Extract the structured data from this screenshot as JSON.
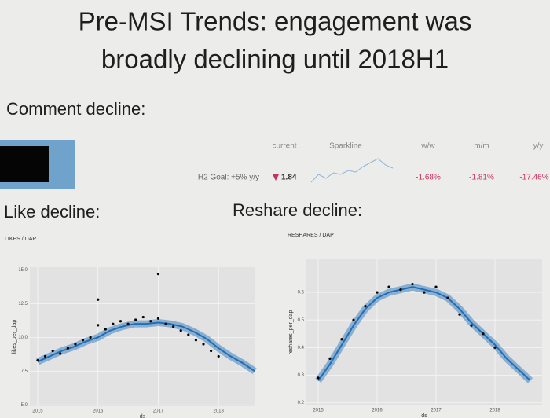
{
  "header": {
    "title_lines": [
      "Pre-MSI Trends: engagement was",
      "broadly declining until 2018H1"
    ]
  },
  "sections": {
    "comment": "Comment decline:",
    "like": "Like decline:",
    "reshare": "Reshare decline:"
  },
  "table": {
    "columns": [
      "current",
      "Sparkline",
      "w/w",
      "m/m",
      "y/y"
    ],
    "row": {
      "goal": "H2 Goal: +5% y/y",
      "current": "1.84",
      "sparkline": [
        3,
        4,
        3.5,
        4.2,
        4,
        4.5,
        4.3,
        5,
        5.5,
        6,
        5.2,
        4.8
      ],
      "ww": "-1.68%",
      "mm": "-1.81%",
      "yy": "-17.46%"
    }
  },
  "chart_data": [
    {
      "type": "scatter",
      "title": "LIKES / DAP",
      "xlabel": "ds",
      "ylabel": "likes_per_dap",
      "xlim": [
        2014.87,
        2018.61
      ],
      "ylim": [
        4.9,
        15.2
      ],
      "xticks": [
        2015,
        2016,
        2017,
        2018
      ],
      "yticks": [
        {
          "value": 5,
          "label": "5.0"
        },
        {
          "value": 7.5,
          "label": "7.5"
        },
        {
          "value": 10,
          "label": "10.0"
        },
        {
          "value": 12.5,
          "label": "12.5"
        },
        {
          "value": 15,
          "label": "15.0"
        }
      ],
      "grid": true,
      "series": [
        {
          "mark": "line",
          "color": "#1f6fb8",
          "x": [
            2015,
            2015.2,
            2015.4,
            2015.6,
            2015.8,
            2016,
            2016.2,
            2016.4,
            2016.6,
            2016.8,
            2017,
            2017.2,
            2017.4,
            2017.6,
            2017.8,
            2018,
            2018.2,
            2018.4,
            2018.6
          ],
          "values": [
            8.2,
            8.6,
            9.0,
            9.3,
            9.7,
            10.0,
            10.5,
            10.8,
            11.0,
            11.0,
            11.1,
            11.0,
            10.8,
            10.4,
            9.9,
            9.2,
            8.6,
            8.1,
            7.5
          ]
        },
        {
          "mark": "point",
          "color": "#000000",
          "x": [
            2015,
            2015.125,
            2015.25,
            2015.375,
            2015.5,
            2015.625,
            2015.75,
            2015.875,
            2016,
            2016.125,
            2016.25,
            2016.375,
            2016.5,
            2016.625,
            2016.75,
            2016.875,
            2017,
            2017.125,
            2017.25,
            2017.375,
            2017.5,
            2017.625,
            2017.75,
            2017.875,
            2018,
            2016.0,
            2017.0
          ],
          "values": [
            8.3,
            8.6,
            9.0,
            8.8,
            9.2,
            9.5,
            9.8,
            10.0,
            10.9,
            10.6,
            11.0,
            11.2,
            11.0,
            11.3,
            11.5,
            11.2,
            11.4,
            11.0,
            10.8,
            10.5,
            10.2,
            9.8,
            9.5,
            9.0,
            8.6,
            12.8,
            14.7
          ]
        }
      ]
    },
    {
      "type": "scatter",
      "title": "RESHARES / DAP",
      "xlabel": "ds",
      "ylabel": "reshares_per_dap",
      "xlim": [
        2014.8,
        2018.8
      ],
      "ylim": [
        0.19,
        0.72
      ],
      "xticks": [
        2015,
        2016,
        2017,
        2018
      ],
      "yticks": [
        0.2,
        0.3,
        0.4,
        0.5,
        0.6
      ],
      "grid": true,
      "series": [
        {
          "mark": "line",
          "color": "#1f6fb8",
          "x": [
            2015,
            2015.2,
            2015.4,
            2015.6,
            2015.8,
            2016,
            2016.2,
            2016.4,
            2016.6,
            2016.8,
            2017,
            2017.2,
            2017.4,
            2017.6,
            2017.8,
            2018,
            2018.2,
            2018.4,
            2018.6
          ],
          "values": [
            0.28,
            0.34,
            0.41,
            0.48,
            0.54,
            0.58,
            0.6,
            0.61,
            0.62,
            0.61,
            0.6,
            0.58,
            0.54,
            0.49,
            0.45,
            0.41,
            0.36,
            0.32,
            0.28
          ]
        },
        {
          "mark": "point",
          "color": "#000000",
          "x": [
            2015,
            2015.2,
            2015.4,
            2015.6,
            2015.8,
            2016,
            2016.2,
            2016.4,
            2016.6,
            2016.8,
            2017,
            2017.2,
            2017.4,
            2017.6,
            2017.8,
            2018
          ],
          "values": [
            0.29,
            0.36,
            0.43,
            0.5,
            0.55,
            0.6,
            0.62,
            0.61,
            0.63,
            0.6,
            0.62,
            0.58,
            0.52,
            0.48,
            0.45,
            0.4
          ]
        }
      ]
    }
  ]
}
